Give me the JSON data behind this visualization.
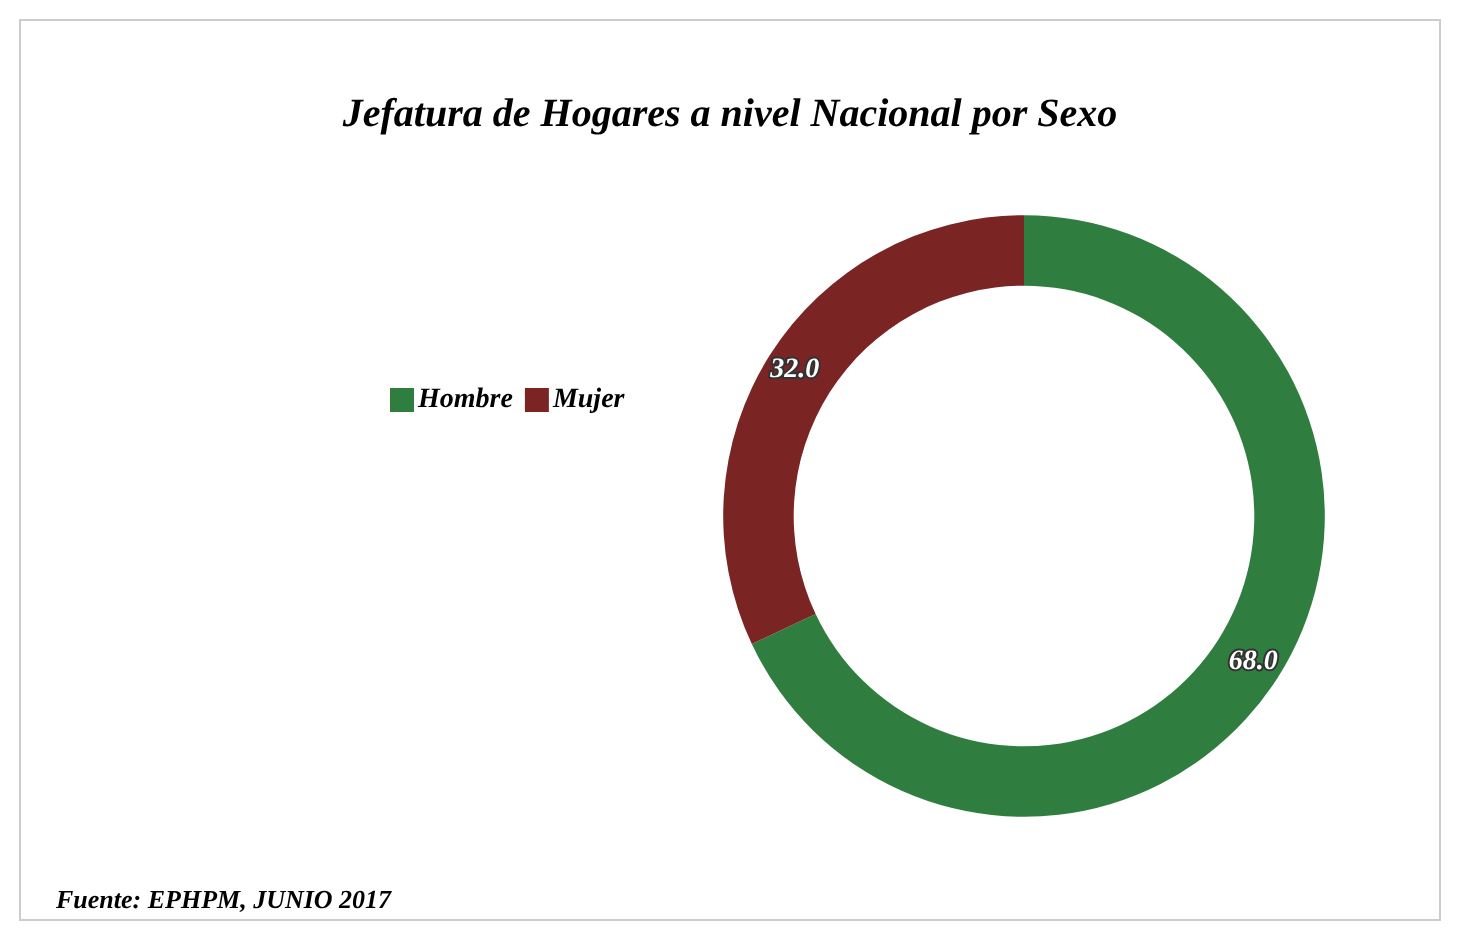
{
  "chart_data": {
    "type": "donut",
    "title": "Jefatura de Hogares a nivel Nacional por Sexo",
    "categories": [
      "Hombre",
      "Mujer"
    ],
    "values": [
      68,
      32
    ],
    "value_labels": [
      "68.0",
      "32.0"
    ],
    "colors": [
      "#2f7d3f",
      "#7b2424"
    ],
    "legend": "left",
    "annotations": [
      "Fuente: EPHPM, JUNIO 2017"
    ]
  }
}
